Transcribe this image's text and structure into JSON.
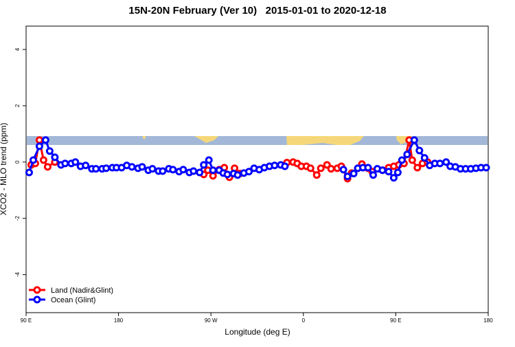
{
  "chart_data": {
    "type": "line",
    "title": "15N-20N February (Ver 10)   2015-01-01 to 2020-12-18",
    "x_label": "Longitude (deg E)",
    "y_label": "XCO2 - MLO trend (ppm)",
    "xlim": [
      90,
      540
    ],
    "ylim": [
      -5.35,
      4.83
    ],
    "xticks": [
      {
        "value": 90,
        "label": "90 E"
      },
      180,
      {
        "value": 270,
        "label": "90 W"
      },
      {
        "value": 360,
        "label": "0"
      },
      {
        "value": 450,
        "label": "90 E"
      },
      {
        "value": 540,
        "label": "180"
      }
    ],
    "yticks": [
      -4,
      -2,
      0,
      2,
      4
    ],
    "legend": "bottom-left",
    "series": [
      {
        "name": "Land (Nadir&Glint)",
        "color": "#ff0000",
        "x": [
          95,
          99,
          103,
          107,
          111,
          118,
          200,
          263,
          267,
          272,
          278,
          283,
          288,
          293,
          298,
          320,
          344,
          350,
          354,
          358,
          363,
          367,
          373,
          377,
          383,
          387,
          393,
          397,
          403,
          407,
          413,
          417,
          423,
          427,
          437,
          443,
          448,
          453,
          458,
          463,
          466,
          471,
          476,
          481
        ],
        "values": [
          -0.1,
          -0.05,
          0.78,
          0.07,
          -0.17,
          0,
          null,
          -0.44,
          -0.29,
          -0.49,
          -0.27,
          -0.2,
          -0.54,
          -0.22,
          -0.41,
          null,
          -0.02,
          0,
          -0.05,
          -0.15,
          -0.15,
          -0.22,
          -0.46,
          -0.22,
          -0.1,
          -0.24,
          -0.22,
          -0.15,
          -0.59,
          -0.39,
          -0.22,
          -0.07,
          -0.22,
          -0.34,
          -0.29,
          -0.2,
          -0.15,
          -0.1,
          -0.05,
          0.78,
          0.07,
          -0.2,
          -0.05,
          0
        ]
      },
      {
        "name": "Ocean (Glint)",
        "color": "#0000ff",
        "x": [
          93,
          97,
          103,
          109,
          113,
          118,
          124,
          128,
          134,
          138,
          143,
          148,
          154,
          158,
          164,
          168,
          174,
          178,
          183,
          188,
          193,
          199,
          203,
          209,
          213,
          219,
          223,
          229,
          233,
          239,
          243,
          249,
          253,
          259,
          263,
          268,
          272,
          278,
          282,
          286,
          292,
          296,
          302,
          307,
          312,
          317,
          322,
          327,
          332,
          338,
          342,
          370,
          399,
          403,
          409,
          413,
          418,
          423,
          428,
          432,
          437,
          443,
          448,
          452,
          456,
          461,
          468,
          473,
          478,
          483,
          488,
          493,
          499,
          503,
          508,
          513,
          518,
          523,
          528,
          533,
          538
        ],
        "values": [
          -0.37,
          0.07,
          0.56,
          0.78,
          0.39,
          0.17,
          -0.1,
          -0.05,
          -0.05,
          0,
          -0.15,
          -0.12,
          -0.24,
          -0.24,
          -0.24,
          -0.22,
          -0.2,
          -0.2,
          -0.2,
          -0.12,
          -0.17,
          -0.22,
          -0.17,
          -0.29,
          -0.24,
          -0.32,
          -0.32,
          -0.24,
          -0.27,
          -0.34,
          -0.27,
          -0.37,
          -0.32,
          -0.37,
          -0.1,
          0.07,
          -0.29,
          -0.29,
          -0.39,
          -0.44,
          -0.41,
          -0.46,
          -0.39,
          -0.34,
          -0.22,
          -0.27,
          -0.2,
          -0.15,
          -0.12,
          -0.1,
          -0.15,
          null,
          -0.27,
          -0.51,
          -0.41,
          -0.22,
          -0.2,
          -0.2,
          -0.46,
          -0.24,
          -0.29,
          -0.34,
          -0.56,
          -0.37,
          0.07,
          0.27,
          0.78,
          0.41,
          0.15,
          -0.12,
          -0.05,
          -0.05,
          0,
          -0.15,
          -0.17,
          -0.24,
          -0.24,
          -0.24,
          -0.22,
          -0.2,
          -0.2
        ]
      }
    ]
  }
}
